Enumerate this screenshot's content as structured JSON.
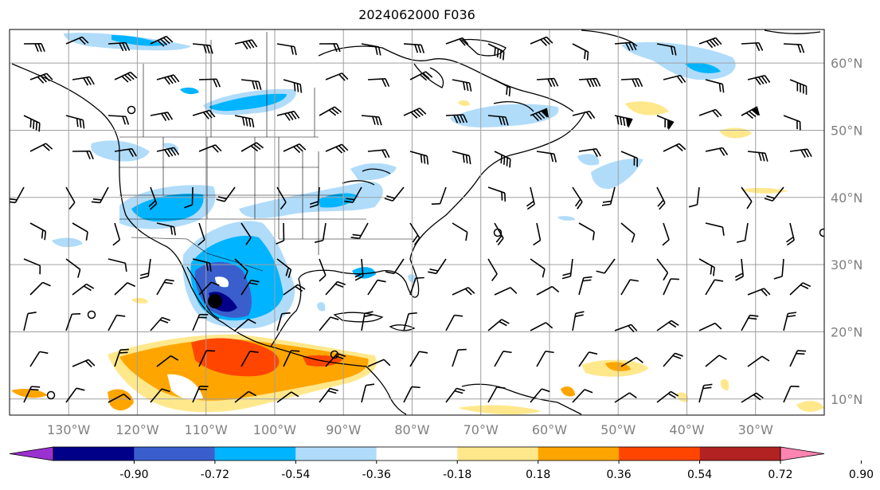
{
  "title": "2024062000 F036",
  "map": {
    "lat_ticks": [
      {
        "lat": 60,
        "label": "60°N"
      },
      {
        "lat": 50,
        "label": "50°N"
      },
      {
        "lat": 40,
        "label": "40°N"
      },
      {
        "lat": 30,
        "label": "30°N"
      },
      {
        "lat": 20,
        "label": "20°N"
      },
      {
        "lat": 10,
        "label": "10°N"
      }
    ],
    "lon_ticks": [
      {
        "lon": -130,
        "label": "130°W"
      },
      {
        "lon": -120,
        "label": "120°W"
      },
      {
        "lon": -110,
        "label": "110°W"
      },
      {
        "lon": -100,
        "label": "100°W"
      },
      {
        "lon": -90,
        "label": "90°W"
      },
      {
        "lon": -80,
        "label": "80°W"
      },
      {
        "lon": -70,
        "label": "70°W"
      },
      {
        "lon": -60,
        "label": "60°W"
      },
      {
        "lon": -50,
        "label": "50°W"
      },
      {
        "lon": -40,
        "label": "40°W"
      },
      {
        "lon": -30,
        "label": "30°W"
      }
    ],
    "grid_color": "#a0a0a0",
    "coast_color": "#000000"
  },
  "colorbar": {
    "levels": [
      "-0.90",
      "-0.72",
      "-0.54",
      "-0.36",
      "-0.18",
      "0.18",
      "0.36",
      "0.54",
      "0.72",
      "0.90"
    ],
    "colors": [
      "#9b30d0",
      "#000088",
      "#3a5fcd",
      "#00b4ff",
      "#b0dcfa",
      "#ffffff",
      "#ffe88c",
      "#ffa500",
      "#ff4500",
      "#b22222",
      "#ff85b0"
    ]
  }
}
